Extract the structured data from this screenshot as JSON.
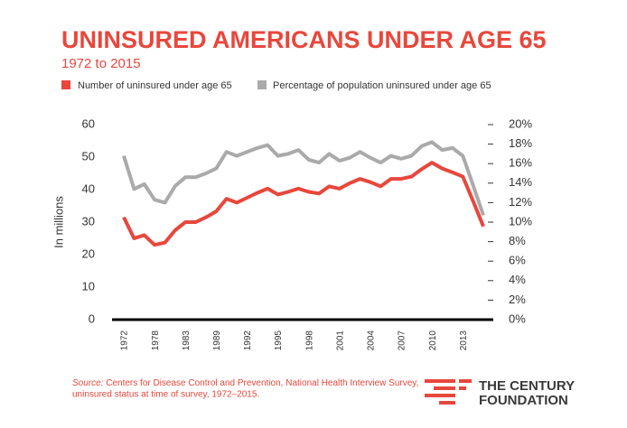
{
  "chart_data": {
    "type": "line",
    "title": "UNINSURED AMERICANS UNDER AGE 65",
    "subtitle": "1972 to 2015",
    "y_label": "In millions",
    "categories": [
      "1972",
      null,
      null,
      "1978",
      null,
      null,
      "1983",
      null,
      null,
      "1989",
      null,
      null,
      "1992",
      null,
      null,
      "1995",
      null,
      null,
      "1998",
      null,
      null,
      "2001",
      null,
      null,
      "2004",
      null,
      null,
      "2007",
      null,
      null,
      "2010",
      null,
      null,
      "2013",
      null,
      null
    ],
    "series": [
      {
        "name": "Number of uninsured under age 65",
        "color": "#e8473c",
        "values": [
          31.5,
          25,
          26,
          23,
          23.7,
          27.5,
          30,
          30,
          31.5,
          33.3,
          37.2,
          36,
          37.5,
          39,
          40.3,
          38.5,
          39.3,
          40.3,
          39.3,
          38.8,
          41,
          40.3,
          42,
          43.3,
          42.3,
          41,
          43.3,
          43.3,
          44,
          46.3,
          48.3,
          46.5,
          45.3,
          44,
          36.5,
          28.7
        ]
      },
      {
        "name": "Percentage of population uninsured under age 65",
        "color": "#aaaaaa",
        "axis": "y2",
        "values": [
          16.8,
          13.4,
          13.9,
          12.3,
          12,
          13.7,
          14.6,
          14.6,
          15,
          15.5,
          17.2,
          16.8,
          17.2,
          17.6,
          17.9,
          16.8,
          17,
          17.4,
          16.4,
          16.1,
          17,
          16.3,
          16.6,
          17.2,
          16.6,
          16.1,
          16.8,
          16.5,
          16.8,
          17.8,
          18.2,
          17.4,
          17.6,
          16.8,
          13.8,
          10.7
        ]
      }
    ],
    "ylim": [
      0,
      60
    ],
    "yticks": [
      0,
      10,
      20,
      30,
      40,
      50,
      60
    ],
    "y2lim": [
      0,
      20
    ],
    "y2ticks": [
      {
        "value": 0,
        "label": "0%"
      },
      {
        "value": 2,
        "label": "2%"
      },
      {
        "value": 4,
        "label": "4%"
      },
      {
        "value": 6,
        "label": "6%"
      },
      {
        "value": 8,
        "label": "8%"
      },
      {
        "value": 10,
        "label": "10%"
      },
      {
        "value": 12,
        "label": "12%"
      },
      {
        "value": 14,
        "label": "14%"
      },
      {
        "value": 16,
        "label": "16%"
      },
      {
        "value": 18,
        "label": "18%"
      },
      {
        "value": 20,
        "label": "20%"
      }
    ],
    "source_label": "Source:",
    "source": [
      "Centers for Disease Control and Prevention, National Health Interview Survey,",
      "uninsured status at time of survey, 1972–2015."
    ],
    "logo": [
      "THE CENTURY",
      "FOUNDATION"
    ]
  }
}
